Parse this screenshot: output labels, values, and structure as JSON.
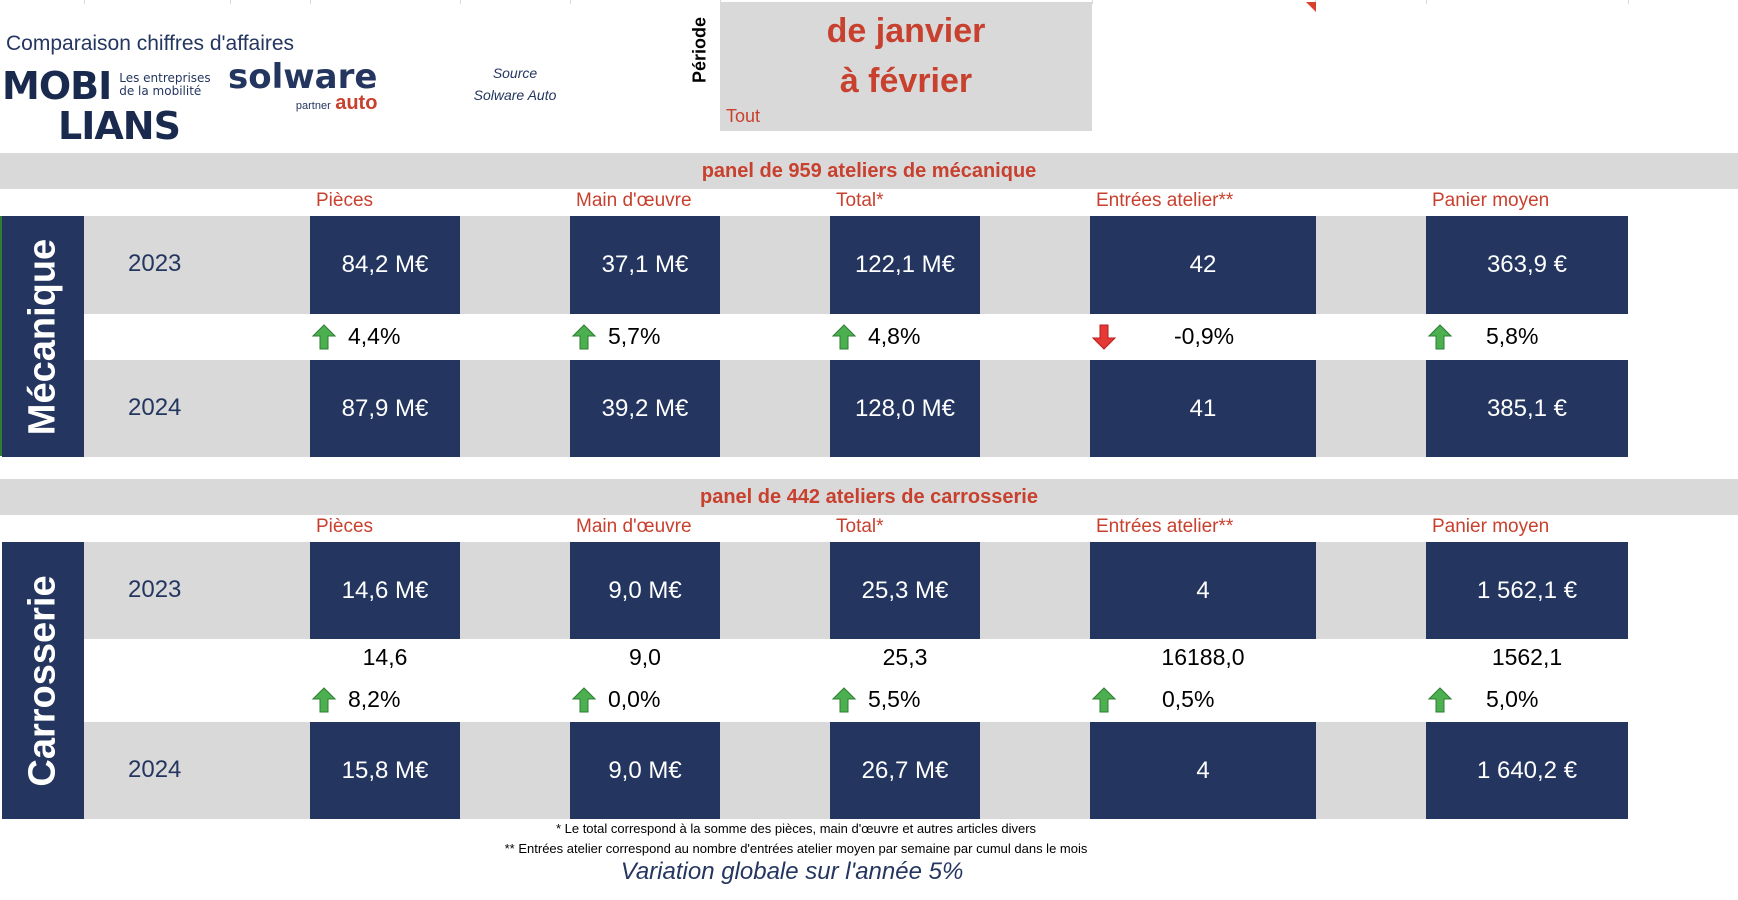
{
  "header": {
    "title": "Comparaison chiffres d'affaires",
    "logo_mobilians": {
      "line1": "MOBI",
      "line2": "LIANS",
      "tagline1": "Les entreprises",
      "tagline2": "de la mobilité"
    },
    "logo_solware": {
      "name": "solware",
      "sub1": "partner",
      "sub2": "auto"
    },
    "source_label": "Source",
    "source_value": "Solware Auto",
    "periode_label": "Période",
    "period_line1": "de janvier",
    "period_line2": "à février",
    "period_filter": "Tout"
  },
  "columns": [
    "Pièces",
    "Main d'œuvre",
    "Total*",
    "Entrées atelier**",
    "Panier moyen"
  ],
  "mecanique": {
    "section_label": "Mécanique",
    "panel": "panel de 959 ateliers de mécanique",
    "year1": "2023",
    "values1": [
      "84,2 M€",
      "37,1 M€",
      "122,1 M€",
      "42",
      "363,9 €"
    ],
    "variations": [
      {
        "dir": "up",
        "value": "4,4%"
      },
      {
        "dir": "up",
        "value": "5,7%"
      },
      {
        "dir": "up",
        "value": "4,8%"
      },
      {
        "dir": "down",
        "value": "-0,9%"
      },
      {
        "dir": "up",
        "value": "5,8%"
      }
    ],
    "year2": "2024",
    "values2": [
      "87,9 M€",
      "39,2 M€",
      "128,0 M€",
      "41",
      "385,1 €"
    ]
  },
  "carrosserie": {
    "section_label": "Carrosserie",
    "panel": "panel de 442 ateliers de carrosserie",
    "year1": "2023",
    "values1": [
      "14,6 M€",
      "9,0 M€",
      "25,3 M€",
      "4",
      "1 562,1 €"
    ],
    "raw_values": [
      "14,6",
      "9,0",
      "25,3",
      "16188,0",
      "1562,1"
    ],
    "variations": [
      {
        "dir": "up",
        "value": "8,2%"
      },
      {
        "dir": "up",
        "value": "0,0%"
      },
      {
        "dir": "up",
        "value": "5,5%"
      },
      {
        "dir": "up",
        "value": "0,5%"
      },
      {
        "dir": "up",
        "value": "5,0%"
      }
    ],
    "year2": "2024",
    "values2": [
      "15,8 M€",
      "9,0 M€",
      "26,7 M€",
      "4",
      "1 640,2 €"
    ]
  },
  "footnotes": {
    "note1": "* Le total correspond à la somme des pièces, main d'œuvre et autres articles divers",
    "note2": "** Entrées atelier correspond au nombre d'entrées atelier moyen par semaine par cumul dans le mois",
    "summary": "Variation globale sur l'année 5%"
  },
  "colors": {
    "navy": "#24365f",
    "red": "#c8402e",
    "grey": "#d9d9d9",
    "up": "#4caf50",
    "down": "#e53935"
  }
}
